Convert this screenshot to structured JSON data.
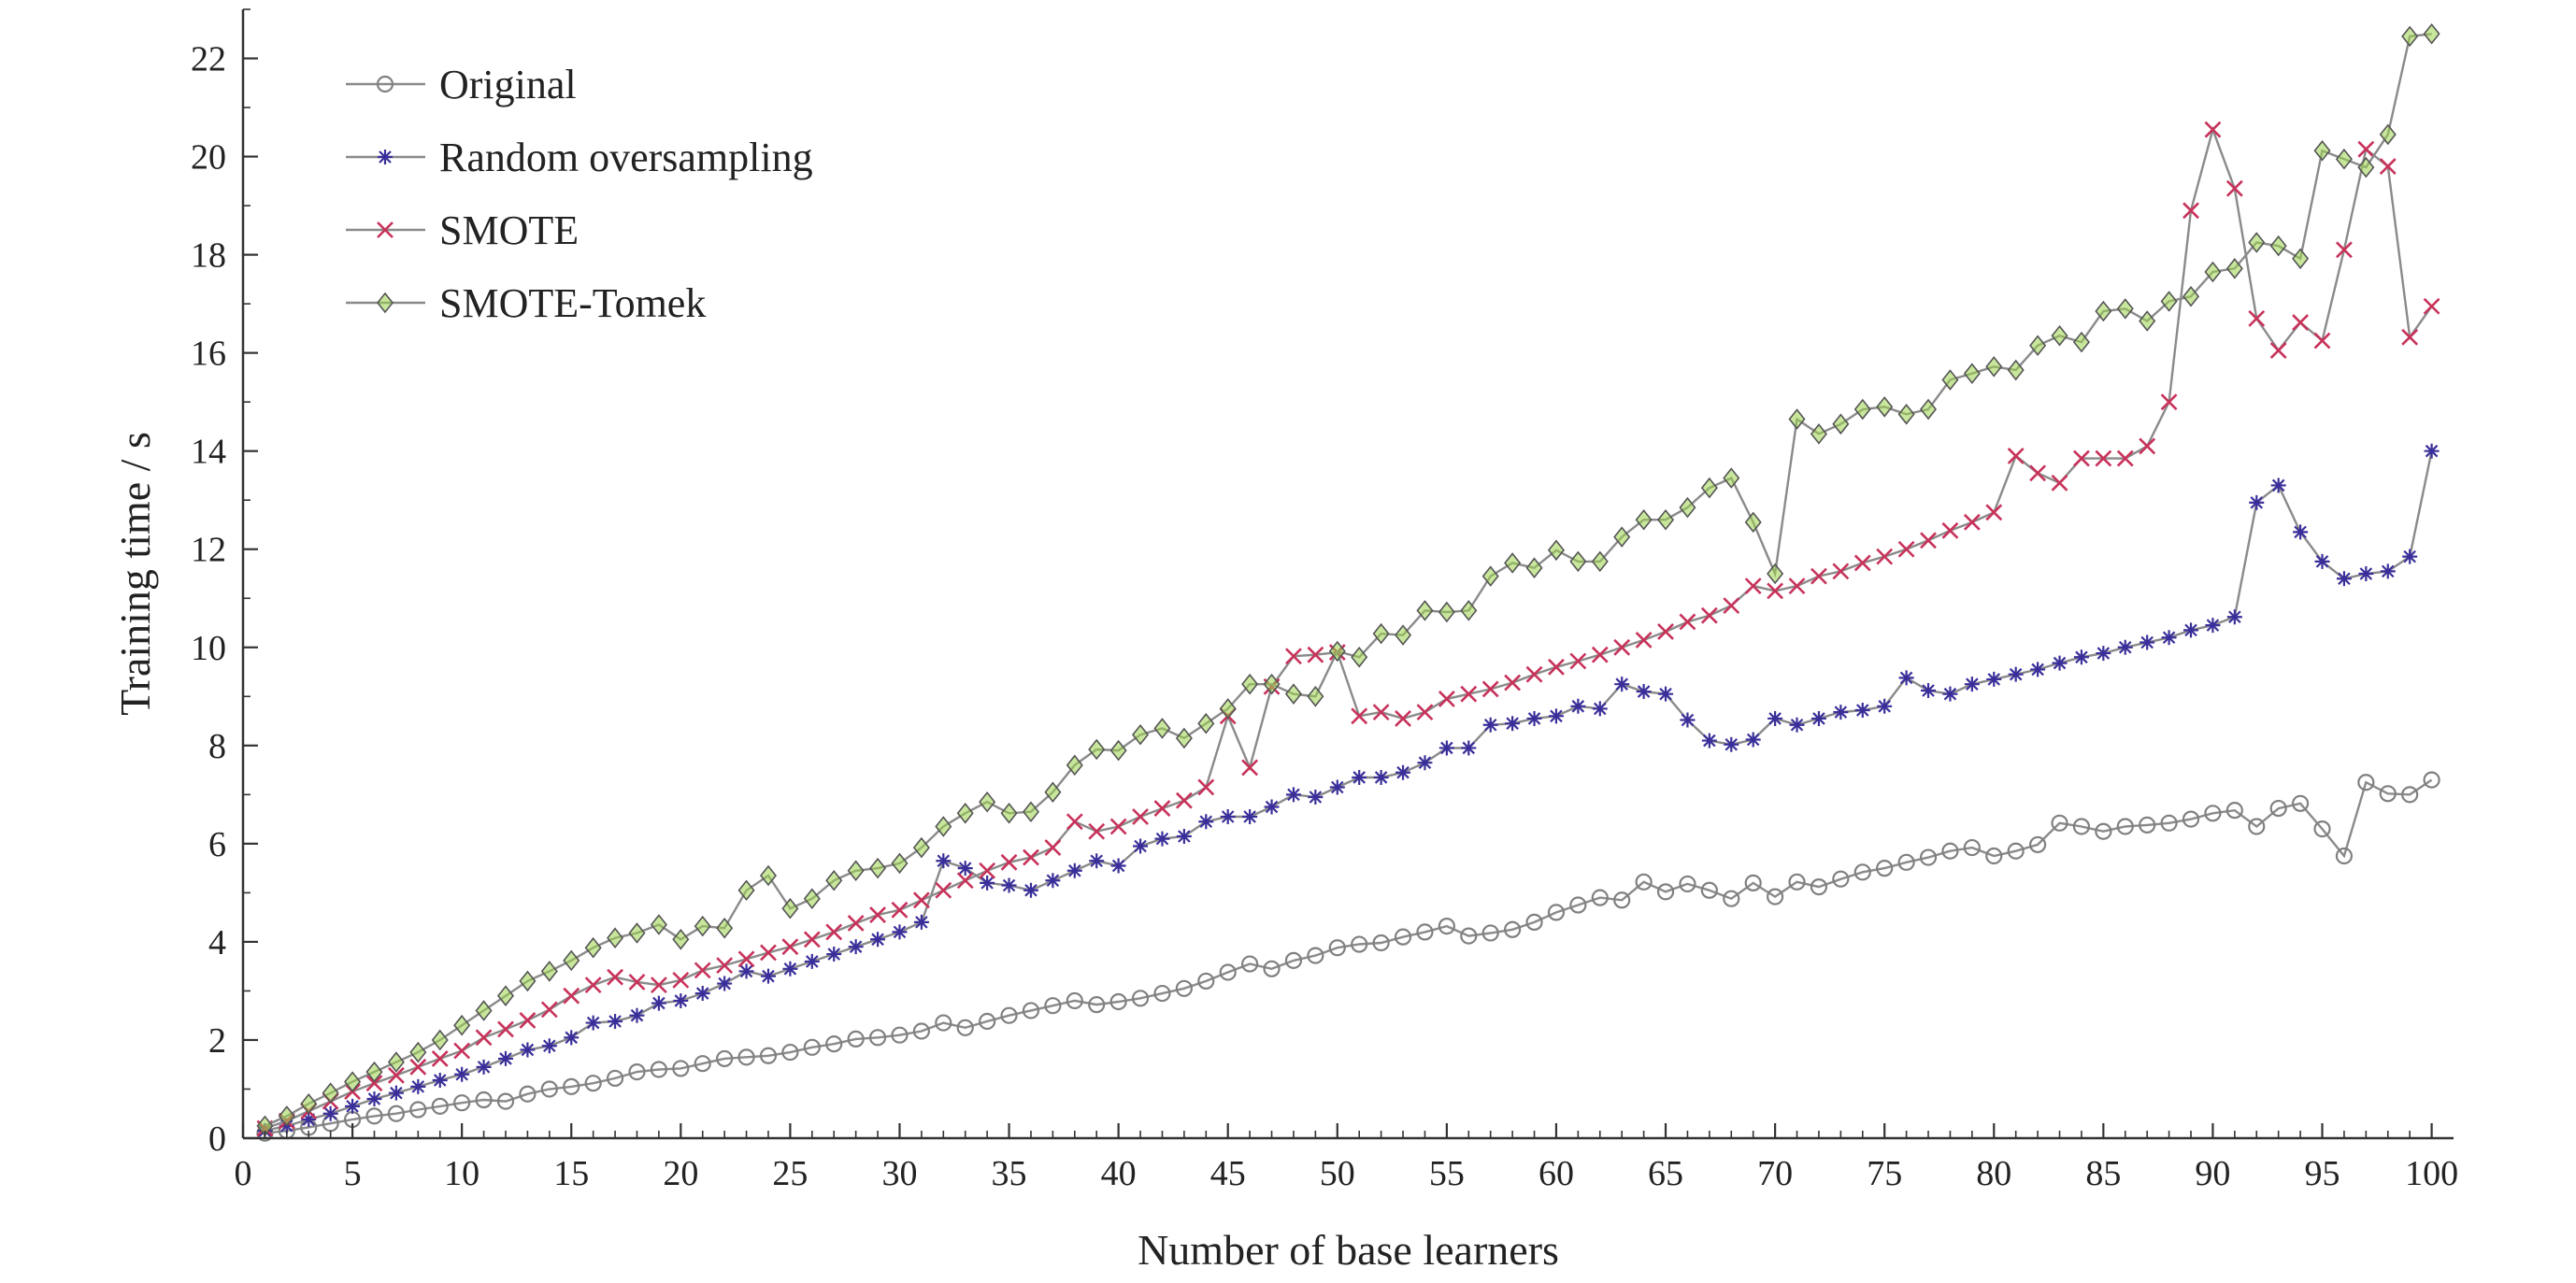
{
  "chart_data": {
    "type": "line",
    "title": "",
    "xlabel": "Number of base learners",
    "ylabel": "Training time / s",
    "xlim": [
      0,
      101
    ],
    "ylim": [
      0,
      23
    ],
    "xticks": [
      0,
      5,
      10,
      15,
      20,
      25,
      30,
      35,
      40,
      45,
      50,
      55,
      60,
      65,
      70,
      75,
      80,
      85,
      90,
      95,
      100
    ],
    "yticks": [
      0,
      2,
      4,
      6,
      8,
      10,
      12,
      14,
      16,
      18,
      20,
      22
    ],
    "grid": false,
    "legend_position": "top-left",
    "x": [
      1,
      2,
      3,
      4,
      5,
      6,
      7,
      8,
      9,
      10,
      11,
      12,
      13,
      14,
      15,
      16,
      17,
      18,
      19,
      20,
      21,
      22,
      23,
      24,
      25,
      26,
      27,
      28,
      29,
      30,
      31,
      32,
      33,
      34,
      35,
      36,
      37,
      38,
      39,
      40,
      41,
      42,
      43,
      44,
      45,
      46,
      47,
      48,
      49,
      50,
      51,
      52,
      53,
      54,
      55,
      56,
      57,
      58,
      59,
      60,
      61,
      62,
      63,
      64,
      65,
      66,
      67,
      68,
      69,
      70,
      71,
      72,
      73,
      74,
      75,
      76,
      77,
      78,
      79,
      80,
      81,
      82,
      83,
      84,
      85,
      86,
      87,
      88,
      89,
      90,
      91,
      92,
      93,
      94,
      95,
      96,
      97,
      98,
      99,
      100
    ],
    "series": [
      {
        "name": "Original",
        "color": "#808080",
        "marker": "circle",
        "values": [
          0.1,
          0.15,
          0.22,
          0.3,
          0.38,
          0.45,
          0.5,
          0.58,
          0.65,
          0.72,
          0.78,
          0.75,
          0.9,
          1.0,
          1.05,
          1.12,
          1.22,
          1.35,
          1.4,
          1.42,
          1.52,
          1.62,
          1.65,
          1.68,
          1.75,
          1.85,
          1.92,
          2.02,
          2.05,
          2.1,
          2.18,
          2.35,
          2.25,
          2.38,
          2.5,
          2.6,
          2.7,
          2.8,
          2.72,
          2.78,
          2.85,
          2.95,
          3.05,
          3.2,
          3.38,
          3.55,
          3.45,
          3.62,
          3.72,
          3.88,
          3.95,
          3.98,
          4.1,
          4.2,
          4.32,
          4.12,
          4.18,
          4.25,
          4.4,
          4.6,
          4.75,
          4.9,
          4.85,
          5.22,
          5.02,
          5.18,
          5.05,
          4.88,
          5.2,
          4.92,
          5.22,
          5.12,
          5.28,
          5.42,
          5.5,
          5.62,
          5.72,
          5.85,
          5.92,
          5.75,
          5.85,
          5.98,
          6.42,
          6.35,
          6.25,
          6.35,
          6.38,
          6.42,
          6.5,
          6.62,
          6.68,
          6.35,
          6.72,
          6.82,
          6.3,
          5.75,
          7.25,
          7.02,
          7.0,
          7.3
        ]
      },
      {
        "name": "Random oversampling",
        "color": "#3a2f9a",
        "marker": "star",
        "values": [
          0.15,
          0.25,
          0.38,
          0.5,
          0.65,
          0.8,
          0.92,
          1.05,
          1.18,
          1.3,
          1.45,
          1.62,
          1.8,
          1.88,
          2.05,
          2.35,
          2.38,
          2.5,
          2.75,
          2.8,
          2.95,
          3.15,
          3.4,
          3.3,
          3.45,
          3.6,
          3.75,
          3.9,
          4.05,
          4.2,
          4.4,
          5.65,
          5.5,
          5.2,
          5.15,
          5.05,
          5.25,
          5.45,
          5.65,
          5.55,
          5.95,
          6.1,
          6.15,
          6.45,
          6.55,
          6.55,
          6.75,
          7.0,
          6.95,
          7.15,
          7.35,
          7.35,
          7.45,
          7.65,
          7.95,
          7.95,
          8.42,
          8.45,
          8.55,
          8.6,
          8.8,
          8.75,
          9.25,
          9.1,
          9.05,
          8.52,
          8.1,
          8.02,
          8.12,
          8.55,
          8.42,
          8.55,
          8.68,
          8.72,
          8.8,
          9.38,
          9.12,
          9.05,
          9.25,
          9.35,
          9.45,
          9.55,
          9.68,
          9.8,
          9.88,
          10.0,
          10.1,
          10.2,
          10.35,
          10.45,
          10.62,
          12.95,
          13.3,
          12.35,
          11.75,
          11.4,
          11.5,
          11.55,
          11.85,
          14.0
        ]
      },
      {
        "name": "SMOTE",
        "color": "#c8325a",
        "marker": "x",
        "values": [
          0.2,
          0.35,
          0.55,
          0.75,
          0.95,
          1.12,
          1.28,
          1.45,
          1.62,
          1.78,
          2.05,
          2.22,
          2.4,
          2.62,
          2.9,
          3.12,
          3.28,
          3.18,
          3.12,
          3.22,
          3.42,
          3.52,
          3.65,
          3.78,
          3.9,
          4.05,
          4.2,
          4.38,
          4.55,
          4.65,
          4.85,
          5.05,
          5.25,
          5.45,
          5.62,
          5.72,
          5.92,
          6.45,
          6.25,
          6.35,
          6.55,
          6.72,
          6.88,
          7.15,
          8.6,
          7.55,
          9.2,
          9.82,
          9.85,
          9.9,
          8.6,
          8.68,
          8.55,
          8.68,
          8.95,
          9.05,
          9.15,
          9.28,
          9.45,
          9.6,
          9.72,
          9.85,
          10.0,
          10.15,
          10.32,
          10.52,
          10.65,
          10.85,
          11.25,
          11.15,
          11.25,
          11.45,
          11.55,
          11.72,
          11.85,
          12.0,
          12.18,
          12.38,
          12.55,
          12.75,
          13.9,
          13.55,
          13.35,
          13.85,
          13.85,
          13.85,
          14.1,
          15.0,
          18.9,
          20.55,
          19.35,
          16.7,
          16.05,
          16.62,
          16.25,
          18.1,
          20.15,
          19.8,
          16.32,
          16.95
        ]
      },
      {
        "name": "SMOTE-Tomek",
        "color": "#9bd34d",
        "marker": "diamond",
        "values": [
          0.25,
          0.45,
          0.7,
          0.92,
          1.15,
          1.35,
          1.55,
          1.75,
          2.0,
          2.3,
          2.6,
          2.9,
          3.2,
          3.4,
          3.62,
          3.88,
          4.08,
          4.18,
          4.35,
          4.05,
          4.32,
          4.28,
          5.05,
          5.35,
          4.68,
          4.88,
          5.25,
          5.45,
          5.5,
          5.6,
          5.92,
          6.35,
          6.62,
          6.85,
          6.62,
          6.65,
          7.05,
          7.6,
          7.92,
          7.9,
          8.22,
          8.35,
          8.15,
          8.45,
          8.75,
          9.25,
          9.25,
          9.05,
          9.0,
          9.92,
          9.8,
          10.28,
          10.25,
          10.75,
          10.72,
          10.75,
          11.45,
          11.72,
          11.62,
          11.98,
          11.75,
          11.75,
          12.25,
          12.6,
          12.6,
          12.85,
          13.25,
          13.45,
          12.55,
          11.5,
          14.65,
          14.35,
          14.55,
          14.85,
          14.9,
          14.75,
          14.85,
          15.45,
          15.58,
          15.72,
          15.65,
          16.15,
          16.35,
          16.22,
          16.85,
          16.9,
          16.65,
          17.05,
          17.15,
          17.65,
          17.72,
          18.25,
          18.18,
          17.92,
          20.12,
          19.95,
          19.78,
          20.45,
          22.45,
          22.5
        ]
      }
    ]
  }
}
